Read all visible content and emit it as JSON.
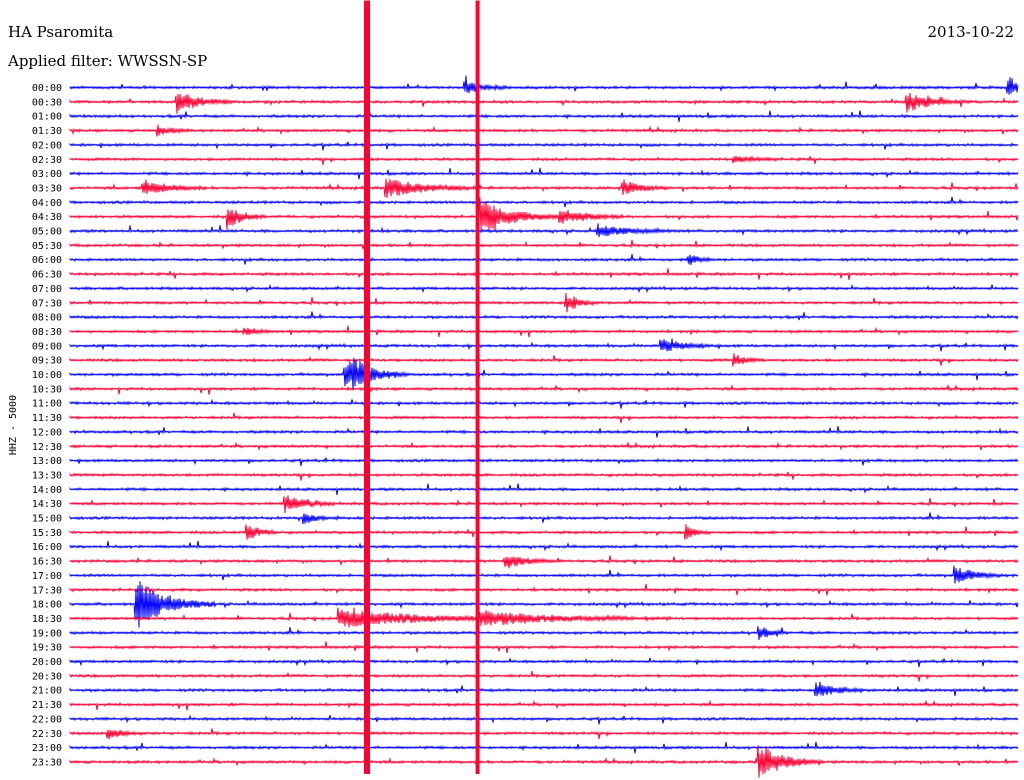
{
  "header": {
    "station": "HA Psaromita",
    "date": "2013-10-22",
    "filter": "Applied filter: WWSSN-SP"
  },
  "chart_data": {
    "type": "line",
    "title": "HA Psaromita",
    "subtitle": "Applied filter: WWSSN-SP",
    "date": "2013-10-22",
    "ylabel": "HHZ - 5000",
    "xlabel": "",
    "row_labels": [
      "00:00",
      "00:30",
      "01:00",
      "01:30",
      "02:00",
      "02:30",
      "03:00",
      "03:30",
      "04:00",
      "04:30",
      "05:00",
      "05:30",
      "06:00",
      "06:30",
      "07:00",
      "07:30",
      "08:00",
      "08:30",
      "09:00",
      "09:30",
      "10:00",
      "10:30",
      "11:00",
      "11:30",
      "12:00",
      "12:30",
      "13:00",
      "13:30",
      "14:00",
      "14:30",
      "15:00",
      "15:30",
      "16:00",
      "16:30",
      "17:00",
      "17:30",
      "18:00",
      "18:30",
      "19:00",
      "19:30",
      "20:00",
      "20:30",
      "21:00",
      "21:30",
      "22:00",
      "22:30",
      "23:00",
      "23:30"
    ],
    "row_minutes": 30,
    "series_colors": [
      "#0000ff",
      "#ff0033"
    ],
    "grid": false,
    "events": [
      {
        "row": 0,
        "minute": 12.5,
        "amp": 0.9,
        "dur": 1.5
      },
      {
        "row": 0,
        "minute": 29.7,
        "amp": 1.5,
        "dur": 1.2
      },
      {
        "row": 1,
        "minute": 3.4,
        "amp": 1.6,
        "dur": 1.8
      },
      {
        "row": 1,
        "minute": 26.5,
        "amp": 1.4,
        "dur": 2.0
      },
      {
        "row": 3,
        "minute": 2.8,
        "amp": 0.7,
        "dur": 1.0
      },
      {
        "row": 5,
        "minute": 21.0,
        "amp": 0.5,
        "dur": 1.5
      },
      {
        "row": 7,
        "minute": 2.3,
        "amp": 1.2,
        "dur": 2.0
      },
      {
        "row": 7,
        "minute": 10.0,
        "amp": 1.4,
        "dur": 3.0
      },
      {
        "row": 7,
        "minute": 17.5,
        "amp": 1.1,
        "dur": 1.5
      },
      {
        "row": 9,
        "minute": 5.0,
        "amp": 1.6,
        "dur": 1.2
      },
      {
        "row": 9,
        "minute": 13.0,
        "amp": 2.5,
        "dur": 2.5
      },
      {
        "row": 9,
        "minute": 15.5,
        "amp": 1.2,
        "dur": 2.0
      },
      {
        "row": 10,
        "minute": 16.7,
        "amp": 0.9,
        "dur": 2.5
      },
      {
        "row": 12,
        "minute": 19.6,
        "amp": 0.9,
        "dur": 0.8
      },
      {
        "row": 15,
        "minute": 15.7,
        "amp": 1.4,
        "dur": 1.0
      },
      {
        "row": 17,
        "minute": 5.5,
        "amp": 0.6,
        "dur": 1.0
      },
      {
        "row": 18,
        "minute": 18.7,
        "amp": 1.0,
        "dur": 1.8
      },
      {
        "row": 19,
        "minute": 21.0,
        "amp": 0.9,
        "dur": 1.0
      },
      {
        "row": 20,
        "minute": 9.0,
        "amp": 1.0,
        "dur": 1.5
      },
      {
        "row": 20,
        "minute": 8.7,
        "amp": 2.0,
        "dur": 2.0
      },
      {
        "row": 29,
        "minute": 6.8,
        "amp": 1.3,
        "dur": 1.5
      },
      {
        "row": 30,
        "minute": 7.4,
        "amp": 0.7,
        "dur": 1.2
      },
      {
        "row": 31,
        "minute": 5.6,
        "amp": 1.3,
        "dur": 1.0
      },
      {
        "row": 31,
        "minute": 19.5,
        "amp": 1.0,
        "dur": 0.8
      },
      {
        "row": 33,
        "minute": 13.8,
        "amp": 1.2,
        "dur": 1.5
      },
      {
        "row": 34,
        "minute": 28.0,
        "amp": 1.4,
        "dur": 1.5
      },
      {
        "row": 36,
        "minute": 2.1,
        "amp": 3.5,
        "dur": 2.5
      },
      {
        "row": 37,
        "minute": 8.5,
        "amp": 1.4,
        "dur": 6.0
      },
      {
        "row": 37,
        "minute": 13.0,
        "amp": 1.0,
        "dur": 6.0
      },
      {
        "row": 38,
        "minute": 21.8,
        "amp": 0.9,
        "dur": 1.0
      },
      {
        "row": 42,
        "minute": 23.6,
        "amp": 1.4,
        "dur": 1.5
      },
      {
        "row": 45,
        "minute": 1.2,
        "amp": 0.8,
        "dur": 1.2
      },
      {
        "row": 47,
        "minute": 21.8,
        "amp": 2.5,
        "dur": 2.0
      }
    ],
    "spikes": [
      {
        "minute": 9.4,
        "from_row": 0,
        "to_row": 47
      },
      {
        "minute": 12.9,
        "from_row": 0,
        "to_row": 47
      }
    ]
  }
}
